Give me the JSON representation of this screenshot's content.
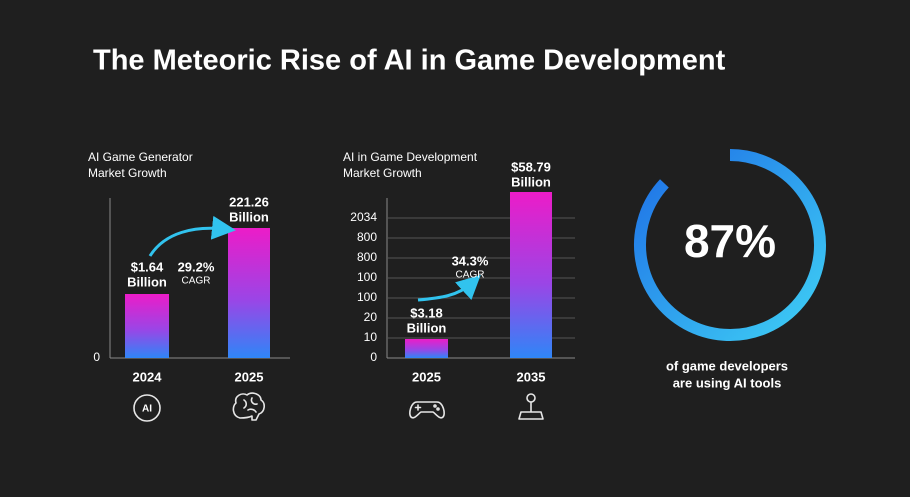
{
  "title": "The Meteoric Rise of AI in Game Development",
  "panels": [
    {
      "title": [
        "AI Game Generator",
        "Market Growth"
      ],
      "axis_labels": [
        "0"
      ],
      "bars": [
        {
          "category": "2024",
          "label": [
            "$1.64",
            "Billion"
          ]
        },
        {
          "category": "2025",
          "label": [
            "221.26",
            "Billion"
          ]
        }
      ],
      "growth": {
        "rate": "29.2%",
        "note": "CAGR"
      }
    },
    {
      "title": [
        "AI in Game Development",
        "Market Growth"
      ],
      "axis_labels": [
        "2034",
        "800",
        "800",
        "100",
        "100",
        "20",
        "10",
        "0"
      ],
      "bars": [
        {
          "category": "2025",
          "label": [
            "$3.18",
            "Billion"
          ]
        },
        {
          "category": "2035",
          "label": [
            "$58.79",
            "Billion"
          ]
        }
      ],
      "growth": {
        "rate": "34.3%",
        "note": "CAGR"
      }
    }
  ],
  "ring": {
    "value": 87,
    "label": "87%"
  },
  "ring_caption": [
    "of game developers",
    "are using AI tools"
  ]
}
